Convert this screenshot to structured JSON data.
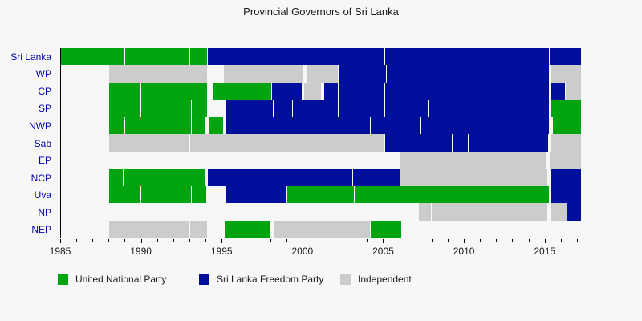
{
  "chart_data": {
    "type": "gantt",
    "title": "Provincial Governors of Sri Lanka",
    "x_domain": [
      1985,
      2017.3
    ],
    "x_ticks": [
      1985,
      1990,
      1995,
      2000,
      2005,
      2010,
      2015
    ],
    "minor_tick_interval": 1,
    "grid": false,
    "legend_position": "bottom",
    "colors": {
      "UNP": "#00a40e",
      "SLFP": "#000f9c",
      "IND": "#cccccc",
      "y_label": "#0000b3",
      "text": "#1a1a1a",
      "background": "#f7f7f7"
    },
    "legend": [
      {
        "label": "United National Party",
        "party": "UNP"
      },
      {
        "label": "Sri Lanka Freedom Party",
        "party": "SLFP"
      },
      {
        "label": "Independent",
        "party": "IND"
      }
    ],
    "rows": [
      {
        "label": "Sri Lanka",
        "segments": [
          {
            "start": 1985,
            "end": 1989,
            "party": "UNP"
          },
          {
            "start": 1989,
            "end": 1993,
            "party": "UNP"
          },
          {
            "start": 1993,
            "end": 1994.1,
            "party": "UNP"
          },
          {
            "start": 1994.1,
            "end": 2005.1,
            "party": "SLFP"
          },
          {
            "start": 2005.1,
            "end": 2015.3,
            "party": "SLFP"
          },
          {
            "start": 2015.3,
            "end": 2017.3,
            "party": "SLFP"
          }
        ]
      },
      {
        "label": "WP",
        "segments": [
          {
            "start": 1988,
            "end": 1994.1,
            "party": "IND"
          },
          {
            "start": 1995.1,
            "end": 2000.1,
            "party": "IND"
          },
          {
            "start": 2000.3,
            "end": 2002.2,
            "party": "IND"
          },
          {
            "start": 2002.2,
            "end": 2005.2,
            "party": "SLFP"
          },
          {
            "start": 2005.2,
            "end": 2015.3,
            "party": "SLFP"
          },
          {
            "start": 2015.4,
            "end": 2017.3,
            "party": "IND"
          }
        ]
      },
      {
        "label": "CP",
        "segments": [
          {
            "start": 1988,
            "end": 1990,
            "party": "UNP"
          },
          {
            "start": 1990,
            "end": 1994.1,
            "party": "UNP"
          },
          {
            "start": 1994.4,
            "end": 1998.1,
            "party": "UNP"
          },
          {
            "start": 1998.1,
            "end": 2000.0,
            "party": "SLFP"
          },
          {
            "start": 2000.1,
            "end": 2001.2,
            "party": "IND"
          },
          {
            "start": 2001.3,
            "end": 2002.2,
            "party": "SLFP"
          },
          {
            "start": 2002.2,
            "end": 2005.1,
            "party": "SLFP"
          },
          {
            "start": 2005.1,
            "end": 2015.3,
            "party": "SLFP"
          },
          {
            "start": 2015.4,
            "end": 2016.3,
            "party": "SLFP"
          },
          {
            "start": 2016.3,
            "end": 2017.3,
            "party": "IND"
          }
        ]
      },
      {
        "label": "SP",
        "segments": [
          {
            "start": 1988,
            "end": 1990,
            "party": "UNP"
          },
          {
            "start": 1990,
            "end": 1993.1,
            "party": "UNP"
          },
          {
            "start": 1993.1,
            "end": 1994.1,
            "party": "UNP"
          },
          {
            "start": 1995.2,
            "end": 1998.2,
            "party": "SLFP"
          },
          {
            "start": 1998.2,
            "end": 1999.4,
            "party": "SLFP"
          },
          {
            "start": 1999.4,
            "end": 2002.2,
            "party": "SLFP"
          },
          {
            "start": 2002.2,
            "end": 2005.1,
            "party": "SLFP"
          },
          {
            "start": 2005.1,
            "end": 2007.8,
            "party": "SLFP"
          },
          {
            "start": 2007.8,
            "end": 2015.3,
            "party": "SLFP"
          },
          {
            "start": 2015.4,
            "end": 2017.3,
            "party": "UNP"
          }
        ]
      },
      {
        "label": "NWP",
        "segments": [
          {
            "start": 1988,
            "end": 1989,
            "party": "UNP"
          },
          {
            "start": 1989,
            "end": 1993.1,
            "party": "UNP"
          },
          {
            "start": 1993.1,
            "end": 1994.0,
            "party": "UNP"
          },
          {
            "start": 1994.2,
            "end": 1995.1,
            "party": "UNP"
          },
          {
            "start": 1995.2,
            "end": 1999.0,
            "party": "SLFP"
          },
          {
            "start": 1999.0,
            "end": 2004.2,
            "party": "SLFP"
          },
          {
            "start": 2004.2,
            "end": 2007.3,
            "party": "SLFP"
          },
          {
            "start": 2007.3,
            "end": 2015.3,
            "party": "SLFP"
          },
          {
            "start": 2015.5,
            "end": 2017.3,
            "party": "UNP"
          }
        ]
      },
      {
        "label": "Sab",
        "segments": [
          {
            "start": 1988,
            "end": 1993.0,
            "party": "IND"
          },
          {
            "start": 1993.0,
            "end": 2005.1,
            "party": "IND"
          },
          {
            "start": 2005.1,
            "end": 2008.1,
            "party": "SLFP"
          },
          {
            "start": 2008.1,
            "end": 2009.3,
            "party": "SLFP"
          },
          {
            "start": 2009.3,
            "end": 2010.3,
            "party": "SLFP"
          },
          {
            "start": 2010.3,
            "end": 2015.25,
            "party": "SLFP"
          },
          {
            "start": 2015.4,
            "end": 2017.3,
            "party": "IND"
          }
        ]
      },
      {
        "label": "EP",
        "segments": [
          {
            "start": 2006.05,
            "end": 2015.1,
            "party": "IND"
          },
          {
            "start": 2015.3,
            "end": 2017.3,
            "party": "IND"
          }
        ]
      },
      {
        "label": "NCP",
        "segments": [
          {
            "start": 1988,
            "end": 1988.9,
            "party": "UNP"
          },
          {
            "start": 1988.9,
            "end": 1994.0,
            "party": "UNP"
          },
          {
            "start": 1994.1,
            "end": 1998.0,
            "party": "SLFP"
          },
          {
            "start": 1998.0,
            "end": 2003.1,
            "party": "SLFP"
          },
          {
            "start": 2003.1,
            "end": 2006.05,
            "party": "SLFP"
          },
          {
            "start": 2006.05,
            "end": 2015.2,
            "party": "IND"
          },
          {
            "start": 2015.4,
            "end": 2017.3,
            "party": "SLFP"
          }
        ]
      },
      {
        "label": "Uva",
        "segments": [
          {
            "start": 1988,
            "end": 1990,
            "party": "UNP"
          },
          {
            "start": 1990,
            "end": 1993.1,
            "party": "UNP"
          },
          {
            "start": 1993.1,
            "end": 1994.05,
            "party": "UNP"
          },
          {
            "start": 1995.2,
            "end": 1999.0,
            "party": "SLFP"
          },
          {
            "start": 1999.05,
            "end": 2003.2,
            "party": "UNP"
          },
          {
            "start": 2003.2,
            "end": 2006.3,
            "party": "UNP"
          },
          {
            "start": 2006.3,
            "end": 2015.3,
            "party": "UNP"
          },
          {
            "start": 2015.4,
            "end": 2017.3,
            "party": "SLFP"
          }
        ]
      },
      {
        "label": "NP",
        "segments": [
          {
            "start": 2007.2,
            "end": 2008.0,
            "party": "IND"
          },
          {
            "start": 2008.0,
            "end": 2009.1,
            "party": "IND"
          },
          {
            "start": 2009.1,
            "end": 2015.2,
            "party": "IND"
          },
          {
            "start": 2015.4,
            "end": 2016.4,
            "party": "IND"
          },
          {
            "start": 2016.4,
            "end": 2017.3,
            "party": "SLFP"
          }
        ]
      },
      {
        "label": "NEP",
        "segments": [
          {
            "start": 1988,
            "end": 1993.0,
            "party": "IND"
          },
          {
            "start": 1993.0,
            "end": 1994.1,
            "party": "IND"
          },
          {
            "start": 1995.15,
            "end": 1998.05,
            "party": "UNP"
          },
          {
            "start": 1998.2,
            "end": 2004.2,
            "party": "IND"
          },
          {
            "start": 2004.2,
            "end": 2006.15,
            "party": "UNP"
          }
        ]
      }
    ]
  }
}
